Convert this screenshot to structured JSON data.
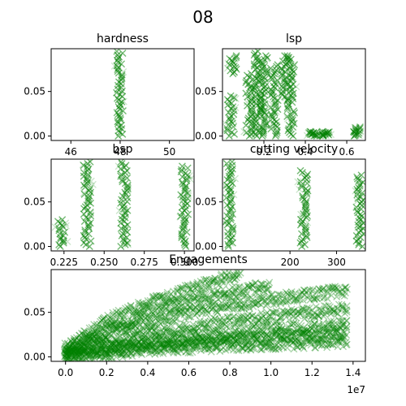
{
  "suptitle": "08",
  "marker_color": "#008000",
  "marker": "x",
  "chart_data": [
    {
      "type": "scatter",
      "title": "hardness",
      "xlim": [
        45.2,
        51
      ],
      "ylim": [
        -0.005,
        0.098
      ],
      "xticks": [
        46,
        48,
        50
      ],
      "xtick_labels": [
        "46",
        "48",
        "50"
      ],
      "yticks": [
        0.0,
        0.05
      ],
      "ytick_labels": [
        "0.00",
        "0.05"
      ],
      "series": [
        {
          "clusters": [
            {
              "x": 48,
              "y": [
                0.0,
                0.095
              ]
            }
          ]
        }
      ]
    },
    {
      "type": "scatter",
      "title": "lsp",
      "xlim": [
        0.0,
        0.69
      ],
      "ylim": [
        -0.005,
        0.098
      ],
      "xticks": [
        0.2,
        0.4,
        0.6
      ],
      "xtick_labels": [
        "0.2",
        "0.4",
        "0.6"
      ],
      "yticks": [
        0.0,
        0.05
      ],
      "ytick_labels": [
        "0.00",
        "0.05"
      ],
      "series": [
        {
          "clusters": [
            {
              "x": 0.04,
              "y": [
                0.0,
                0.045
              ]
            },
            {
              "x": 0.05,
              "y": [
                0.07,
                0.09
              ]
            },
            {
              "x": 0.13,
              "y": [
                0.0,
                0.07
              ]
            },
            {
              "x": 0.17,
              "y": [
                0.0,
                0.095
              ]
            },
            {
              "x": 0.2,
              "y": [
                0.0,
                0.09
              ]
            },
            {
              "x": 0.25,
              "y": [
                0.0,
                0.08
              ]
            },
            {
              "x": 0.3,
              "y": [
                0.04,
                0.09
              ]
            },
            {
              "x": 0.33,
              "y": [
                0.0,
                0.09
              ]
            },
            {
              "x": 0.44,
              "y": [
                0.0,
                0.005
              ]
            },
            {
              "x": 0.5,
              "y": [
                0.0,
                0.005
              ]
            },
            {
              "x": 0.65,
              "y": [
                0.0,
                0.01
              ]
            }
          ]
        }
      ]
    },
    {
      "type": "scatter",
      "title": "bsp",
      "xlim": [
        0.217,
        0.306
      ],
      "ylim": [
        -0.005,
        0.098
      ],
      "xticks": [
        0.225,
        0.25,
        0.275,
        0.3
      ],
      "xtick_labels": [
        "0.225",
        "0.250",
        "0.275",
        "0.300"
      ],
      "yticks": [
        0.0,
        0.05
      ],
      "ytick_labels": [
        "0.00",
        "0.05"
      ],
      "series": [
        {
          "clusters": [
            {
              "x": 0.2235,
              "y": [
                0.0,
                0.03
              ]
            },
            {
              "x": 0.2395,
              "y": [
                0.0,
                0.095
              ]
            },
            {
              "x": 0.2625,
              "y": [
                0.0,
                0.095
              ]
            },
            {
              "x": 0.3,
              "y": [
                0.0,
                0.09
              ]
            }
          ]
        }
      ]
    },
    {
      "type": "scatter",
      "title": "cutting velocity",
      "xlim": [
        55,
        362
      ],
      "ylim": [
        -0.005,
        0.098
      ],
      "xticks": [
        200,
        300
      ],
      "xtick_labels": [
        "200",
        "300"
      ],
      "yticks": [
        0.0,
        0.05
      ],
      "ytick_labels": [
        "0.00",
        "0.05"
      ],
      "series": [
        {
          "clusters": [
            {
              "x": 70,
              "y": [
                0.0,
                0.095
              ]
            },
            {
              "x": 230,
              "y": [
                0.0,
                0.085
              ]
            },
            {
              "x": 350,
              "y": [
                0.0,
                0.08
              ]
            }
          ]
        }
      ]
    },
    {
      "type": "scatter",
      "title": "Engagements",
      "xlim": [
        -700000,
        14600000
      ],
      "ylim": [
        -0.005,
        0.098
      ],
      "xticks": [
        0,
        2000000,
        4000000,
        6000000,
        8000000,
        10000000,
        12000000,
        14000000
      ],
      "xtick_labels": [
        "0.0",
        "0.2",
        "0.4",
        "0.6",
        "0.8",
        "1.0",
        "1.2",
        "1.4"
      ],
      "x_offset_label": "1e7",
      "yticks": [
        0.0,
        0.05
      ],
      "ytick_labels": [
        "0.00",
        "0.05"
      ],
      "series": [
        {
          "curves": [
            {
              "x": [
                0,
                2000000,
                4000000,
                6000000,
                8600000
              ],
              "y": [
                0.01,
                0.04,
                0.06,
                0.075,
                0.095
              ]
            },
            {
              "x": [
                0,
                2000000,
                4000000,
                6000000,
                8000000,
                10000000
              ],
              "y": [
                0.008,
                0.03,
                0.05,
                0.062,
                0.072,
                0.08
              ]
            },
            {
              "x": [
                0,
                2000000,
                4000000,
                6000000,
                8000000,
                10000000,
                12000000,
                13800000
              ],
              "y": [
                0.005,
                0.025,
                0.038,
                0.05,
                0.058,
                0.064,
                0.07,
                0.075
              ]
            },
            {
              "x": [
                0,
                3000000,
                6000000,
                9000000,
                12000000,
                13800000
              ],
              "y": [
                0.004,
                0.022,
                0.033,
                0.042,
                0.05,
                0.055
              ]
            },
            {
              "x": [
                0,
                3000000,
                6000000,
                9000000,
                12000000,
                13800000
              ],
              "y": [
                0.002,
                0.015,
                0.022,
                0.028,
                0.033,
                0.036
              ]
            },
            {
              "x": [
                0,
                3000000,
                6000000,
                9000000,
                12000000,
                13800000
              ],
              "y": [
                0.001,
                0.01,
                0.016,
                0.02,
                0.024,
                0.028
              ]
            },
            {
              "x": [
                0,
                4000000,
                8000000,
                12000000,
                13800000
              ],
              "y": [
                0.0,
                0.008,
                0.013,
                0.016,
                0.018
              ]
            }
          ]
        }
      ]
    }
  ]
}
